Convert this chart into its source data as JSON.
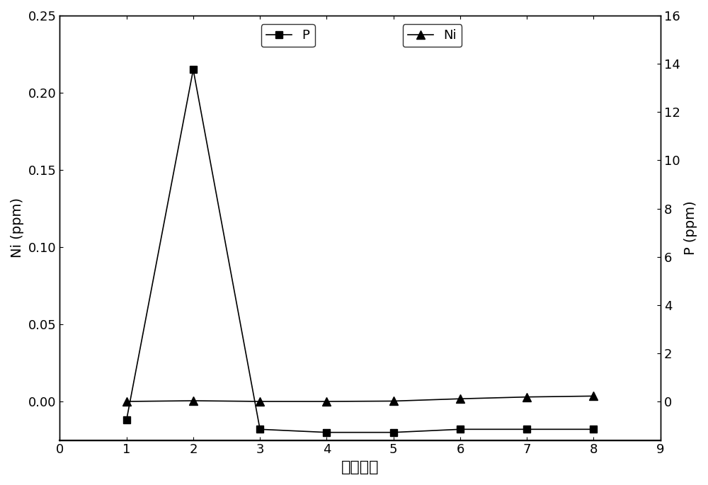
{
  "x": [
    1,
    2,
    3,
    4,
    5,
    6,
    7,
    8
  ],
  "ni_values": [
    -0.012,
    0.215,
    -0.018,
    -0.02,
    -0.02,
    -0.018,
    -0.018,
    -0.018
  ],
  "p_values": [
    0.002,
    0.032,
    0.003,
    0.002,
    0.018,
    0.113,
    0.188,
    0.226
  ],
  "xlabel": "洗脱次数",
  "ylabel_left": "Ni (ppm)",
  "ylabel_right": "P (ppm)",
  "legend_p": "P",
  "legend_ni": "Ni",
  "xlim": [
    0,
    9
  ],
  "ylim_left": [
    -0.025,
    0.25
  ],
  "ylim_right": [
    -1.6,
    16
  ],
  "xticks": [
    0,
    1,
    2,
    3,
    4,
    5,
    6,
    7,
    8,
    9
  ],
  "yticks_left": [
    0.0,
    0.05,
    0.1,
    0.15,
    0.2,
    0.25
  ],
  "yticks_right": [
    0,
    2,
    4,
    6,
    8,
    10,
    12,
    14,
    16
  ],
  "background_color": "#ffffff",
  "line_color": "#000000",
  "markersize_square": 7,
  "markersize_triangle": 8,
  "linewidth": 1.2,
  "tick_labelsize": 13,
  "axis_labelsize": 14,
  "legend_fontsize": 13,
  "xlabel_fontsize": 16
}
